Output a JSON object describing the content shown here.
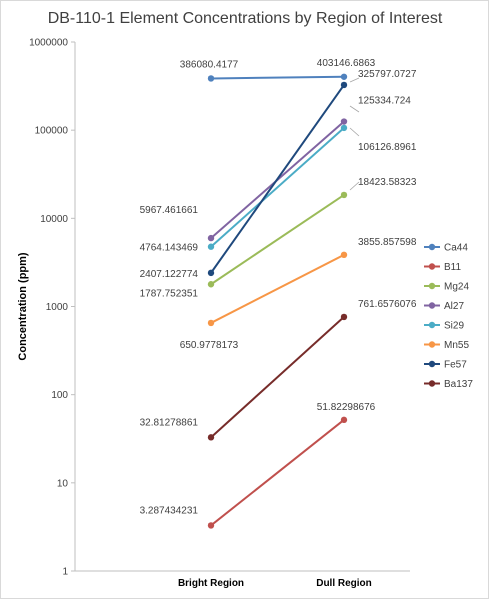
{
  "chart_data": {
    "type": "line",
    "title": "DB-110-1 Element Concentrations by Region of Interest",
    "ylabel": "Concentration (ppm)",
    "xlabel": "",
    "yscale": "log",
    "ylim": [
      1,
      1000000
    ],
    "yticks": [
      "1",
      "10",
      "100",
      "1000",
      "10000",
      "100000",
      "1000000"
    ],
    "categories": [
      "Bright Region",
      "Dull Region"
    ],
    "grid": false,
    "legend_position": "right",
    "series": [
      {
        "name": "Ca44",
        "color": "#4F81BD",
        "values": [
          386080.4177,
          403146.6863
        ],
        "labels": [
          "386080.4177",
          "403146.6863"
        ]
      },
      {
        "name": "B11",
        "color": "#C0504D",
        "values": [
          3.287434231,
          51.82298676
        ],
        "labels": [
          "3.287434231",
          "51.82298676"
        ]
      },
      {
        "name": "Mg24",
        "color": "#9BBB59",
        "values": [
          1787.752351,
          18423.58323
        ],
        "labels": [
          "1787.752351",
          "18423.58323"
        ]
      },
      {
        "name": "Al27",
        "color": "#8064A2",
        "values": [
          5967.461661,
          125334.724
        ],
        "labels": [
          "5967.461661",
          "125334.724"
        ]
      },
      {
        "name": "Si29",
        "color": "#4BACC6",
        "values": [
          4764.143469,
          106126.8961
        ],
        "labels": [
          "4764.143469",
          "106126.8961"
        ]
      },
      {
        "name": "Mn55",
        "color": "#F79646",
        "values": [
          650.9778173,
          3855.857598
        ],
        "labels": [
          "650.9778173",
          "3855.857598"
        ]
      },
      {
        "name": "Fe57",
        "color": "#1F497D",
        "values": [
          2407.122774,
          325797.0727
        ],
        "labels": [
          "2407.122774",
          "325797.0727"
        ]
      },
      {
        "name": "Ba137",
        "color": "#772C2A",
        "values": [
          32.81278861,
          761.6576076
        ],
        "labels": [
          "32.81278861",
          "761.6576076"
        ]
      }
    ]
  }
}
